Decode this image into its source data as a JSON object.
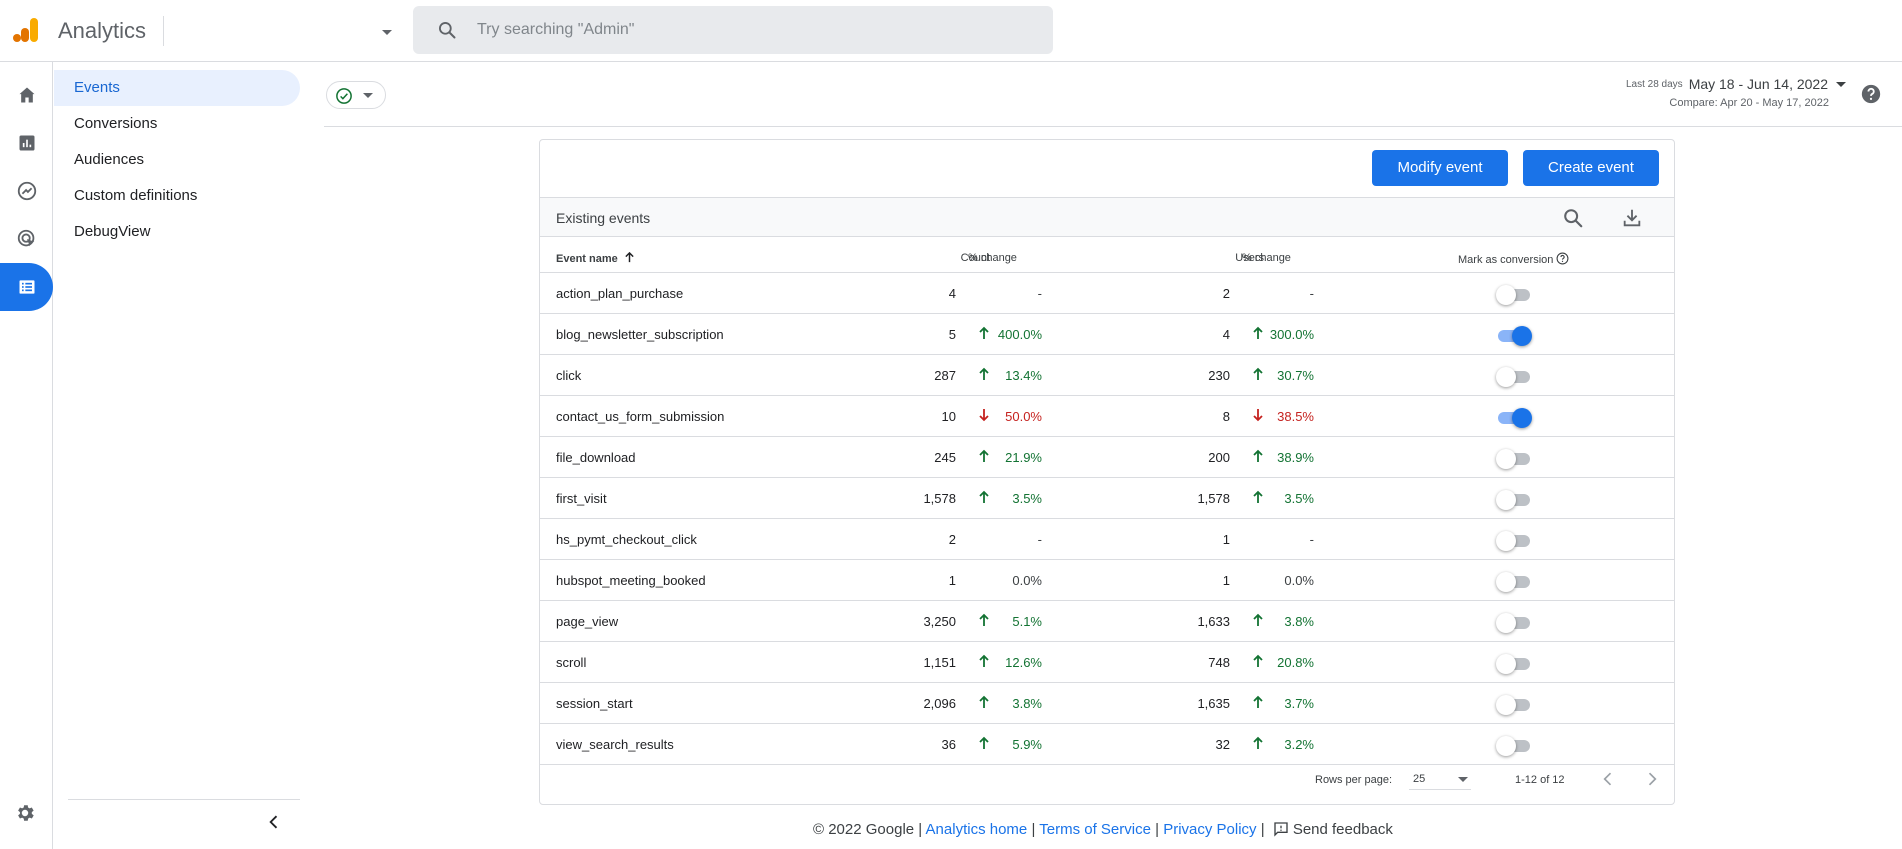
{
  "app": {
    "title": "Analytics"
  },
  "search": {
    "placeholder": "Try searching \"Admin\""
  },
  "rail": {
    "items": [
      "home-icon",
      "reports-icon",
      "explore-icon",
      "advertising-icon",
      "configure-icon"
    ],
    "active": 4
  },
  "sidenav": {
    "items": [
      {
        "label": "Events",
        "active": true
      },
      {
        "label": "Conversions"
      },
      {
        "label": "Audiences"
      },
      {
        "label": "Custom definitions"
      },
      {
        "label": "DebugView"
      }
    ]
  },
  "date_range": {
    "preset": "Last 28 days",
    "range": "May 18 - Jun 14, 2022",
    "compare": "Compare: Apr 20 - May 17, 2022"
  },
  "actions": {
    "modify": "Modify event",
    "create": "Create event"
  },
  "table": {
    "title": "Existing events",
    "headers": {
      "event_name": "Event name",
      "count": "Count",
      "count_change": "% change",
      "users": "Users",
      "users_change": "% change",
      "mark_conversion": "Mark as conversion"
    },
    "rows": [
      {
        "name": "action_plan_purchase",
        "count": "4",
        "count_change": "-",
        "count_dir": "none",
        "users": "2",
        "users_change": "-",
        "users_dir": "none",
        "conversion": false
      },
      {
        "name": "blog_newsletter_subscription",
        "count": "5",
        "count_change": "400.0%",
        "count_dir": "up",
        "users": "4",
        "users_change": "300.0%",
        "users_dir": "up",
        "conversion": true
      },
      {
        "name": "click",
        "count": "287",
        "count_change": "13.4%",
        "count_dir": "up",
        "users": "230",
        "users_change": "30.7%",
        "users_dir": "up",
        "conversion": false
      },
      {
        "name": "contact_us_form_submission",
        "count": "10",
        "count_change": "50.0%",
        "count_dir": "down",
        "users": "8",
        "users_change": "38.5%",
        "users_dir": "down",
        "conversion": true
      },
      {
        "name": "file_download",
        "count": "245",
        "count_change": "21.9%",
        "count_dir": "up",
        "users": "200",
        "users_change": "38.9%",
        "users_dir": "up",
        "conversion": false
      },
      {
        "name": "first_visit",
        "count": "1,578",
        "count_change": "3.5%",
        "count_dir": "up",
        "users": "1,578",
        "users_change": "3.5%",
        "users_dir": "up",
        "conversion": false
      },
      {
        "name": "hs_pymt_checkout_click",
        "count": "2",
        "count_change": "-",
        "count_dir": "none",
        "users": "1",
        "users_change": "-",
        "users_dir": "none",
        "conversion": false
      },
      {
        "name": "hubspot_meeting_booked",
        "count": "1",
        "count_change": "0.0%",
        "count_dir": "none",
        "users": "1",
        "users_change": "0.0%",
        "users_dir": "none",
        "conversion": false
      },
      {
        "name": "page_view",
        "count": "3,250",
        "count_change": "5.1%",
        "count_dir": "up",
        "users": "1,633",
        "users_change": "3.8%",
        "users_dir": "up",
        "conversion": false
      },
      {
        "name": "scroll",
        "count": "1,151",
        "count_change": "12.6%",
        "count_dir": "up",
        "users": "748",
        "users_change": "20.8%",
        "users_dir": "up",
        "conversion": false
      },
      {
        "name": "session_start",
        "count": "2,096",
        "count_change": "3.8%",
        "count_dir": "up",
        "users": "1,635",
        "users_change": "3.7%",
        "users_dir": "up",
        "conversion": false
      },
      {
        "name": "view_search_results",
        "count": "36",
        "count_change": "5.9%",
        "count_dir": "up",
        "users": "32",
        "users_change": "3.2%",
        "users_dir": "up",
        "conversion": false
      }
    ]
  },
  "pagination": {
    "rows_per_page_label": "Rows per page:",
    "rows_per_page": "25",
    "range": "1-12 of 12"
  },
  "footer": {
    "copyright": "© 2022 Google |",
    "analytics_home": "Analytics home",
    "sep1": "|",
    "terms": "Terms of Service",
    "sep2": "|",
    "privacy": "Privacy Policy",
    "sep3": "|",
    "feedback": "Send feedback"
  },
  "colors": {
    "accent": "#1a73e8",
    "up": "#137333",
    "down": "#c5221f",
    "logo_dark": "#e37400",
    "logo_light": "#f9ab00"
  }
}
